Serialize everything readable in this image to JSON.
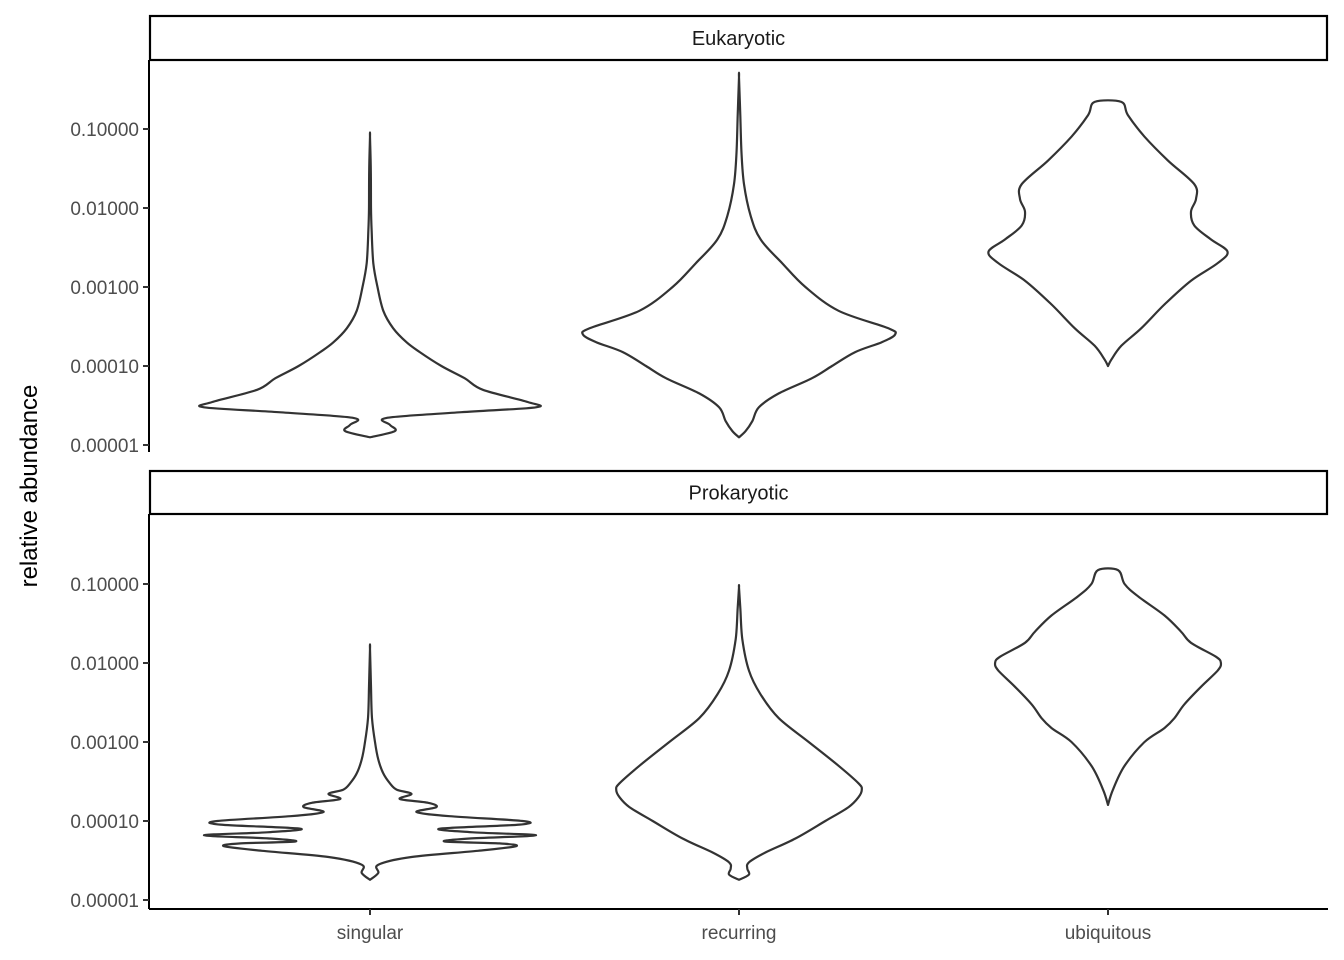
{
  "chart_data": {
    "type": "violin",
    "ylabel": "relative abundance",
    "xlabel": "",
    "y_scale": "log10",
    "ylim": [
      1e-05,
      0.5
    ],
    "grid": false,
    "categories": [
      "singular",
      "recurring",
      "ubiquitous"
    ],
    "y_ticks": [
      1e-05,
      0.0001,
      0.001,
      0.01,
      0.1
    ],
    "y_tick_labels": [
      "0.00001",
      "0.00010",
      "0.00100",
      "0.01000",
      "0.10000"
    ],
    "facets": [
      {
        "name": "Eukaryotic",
        "violins": [
          {
            "category": "singular",
            "y_min": 1.25e-05,
            "y_max": 0.08,
            "profile": [
              [
                1.25e-05,
                0.0
              ],
              [
                1.5e-05,
                0.15
              ],
              [
                1.8e-05,
                0.12
              ],
              [
                2.2e-05,
                0.1
              ],
              [
                2.6e-05,
                0.55
              ],
              [
                3e-05,
                1.0
              ],
              [
                3.5e-05,
                0.95
              ],
              [
                5e-05,
                0.68
              ],
              [
                7e-05,
                0.57
              ],
              [
                0.0001,
                0.43
              ],
              [
                0.00015,
                0.3
              ],
              [
                0.0002,
                0.22
              ],
              [
                0.0003,
                0.14
              ],
              [
                0.0005,
                0.08
              ],
              [
                0.001,
                0.045
              ],
              [
                0.002,
                0.02
              ],
              [
                0.005,
                0.01
              ],
              [
                0.01,
                0.006
              ],
              [
                0.03,
                0.005
              ],
              [
                0.08,
                0.0
              ]
            ]
          },
          {
            "category": "recurring",
            "y_min": 1.25e-05,
            "y_max": 0.45,
            "profile": [
              [
                1.25e-05,
                0.0
              ],
              [
                1.5e-05,
                0.04
              ],
              [
                2e-05,
                0.08
              ],
              [
                3e-05,
                0.12
              ],
              [
                4.5e-05,
                0.24
              ],
              [
                7e-05,
                0.44
              ],
              [
                0.0001,
                0.56
              ],
              [
                0.00015,
                0.7
              ],
              [
                0.0002,
                0.86
              ],
              [
                0.00025,
                0.94
              ],
              [
                0.0003,
                0.9
              ],
              [
                0.0005,
                0.6
              ],
              [
                0.001,
                0.4
              ],
              [
                0.002,
                0.26
              ],
              [
                0.004,
                0.13
              ],
              [
                0.008,
                0.07
              ],
              [
                0.02,
                0.03
              ],
              [
                0.05,
                0.015
              ],
              [
                0.15,
                0.008
              ],
              [
                0.45,
                0.0
              ]
            ]
          },
          {
            "category": "ubiquitous",
            "y_min": 0.0001,
            "y_max": 0.22,
            "profile": [
              [
                0.0001,
                0.0
              ],
              [
                0.00012,
                0.02
              ],
              [
                0.00018,
                0.08
              ],
              [
                0.0003,
                0.2
              ],
              [
                0.0006,
                0.34
              ],
              [
                0.0012,
                0.5
              ],
              [
                0.002,
                0.66
              ],
              [
                0.0028,
                0.72
              ],
              [
                0.004,
                0.62
              ],
              [
                0.006,
                0.52
              ],
              [
                0.009,
                0.5
              ],
              [
                0.013,
                0.53
              ],
              [
                0.02,
                0.52
              ],
              [
                0.04,
                0.36
              ],
              [
                0.08,
                0.22
              ],
              [
                0.15,
                0.12
              ],
              [
                0.22,
                0.08
              ]
            ]
          }
        ]
      },
      {
        "name": "Prokaryotic",
        "violins": [
          {
            "category": "singular",
            "y_min": 1.8e-05,
            "y_max": 0.015,
            "profile": [
              [
                1.8e-05,
                0.0
              ],
              [
                2.2e-05,
                0.05
              ],
              [
                2.8e-05,
                0.05
              ],
              [
                3.5e-05,
                0.25
              ],
              [
                4.2e-05,
                0.65
              ],
              [
                4.8e-05,
                0.88
              ],
              [
                5.2e-05,
                0.78
              ],
              [
                5.5e-05,
                0.45
              ],
              [
                6e-05,
                0.6
              ],
              [
                6.6e-05,
                1.0
              ],
              [
                7.2e-05,
                0.62
              ],
              [
                8e-05,
                0.42
              ],
              [
                9e-05,
                0.9
              ],
              [
                0.0001,
                0.92
              ],
              [
                0.000115,
                0.48
              ],
              [
                0.00013,
                0.28
              ],
              [
                0.00015,
                0.4
              ],
              [
                0.00017,
                0.35
              ],
              [
                0.00019,
                0.18
              ],
              [
                0.00022,
                0.25
              ],
              [
                0.00025,
                0.16
              ],
              [
                0.0003,
                0.12
              ],
              [
                0.0004,
                0.08
              ],
              [
                0.0006,
                0.05
              ],
              [
                0.001,
                0.03
              ],
              [
                0.002,
                0.012
              ],
              [
                0.005,
                0.006
              ],
              [
                0.015,
                0.0
              ]
            ]
          },
          {
            "category": "recurring",
            "y_min": 1.8e-05,
            "y_max": 0.09,
            "profile": [
              [
                1.8e-05,
                0.0
              ],
              [
                2.1e-05,
                0.06
              ],
              [
                2.5e-05,
                0.05
              ],
              [
                3e-05,
                0.06
              ],
              [
                4e-05,
                0.16
              ],
              [
                6e-05,
                0.34
              ],
              [
                0.0001,
                0.52
              ],
              [
                0.00015,
                0.66
              ],
              [
                0.0002,
                0.72
              ],
              [
                0.00025,
                0.74
              ],
              [
                0.0003,
                0.72
              ],
              [
                0.0005,
                0.6
              ],
              [
                0.001,
                0.42
              ],
              [
                0.002,
                0.24
              ],
              [
                0.004,
                0.13
              ],
              [
                0.008,
                0.06
              ],
              [
                0.02,
                0.02
              ],
              [
                0.05,
                0.008
              ],
              [
                0.09,
                0.0
              ]
            ]
          },
          {
            "category": "ubiquitous",
            "y_min": 0.00016,
            "y_max": 0.15,
            "profile": [
              [
                0.00016,
                0.0
              ],
              [
                0.00025,
                0.03
              ],
              [
                0.0005,
                0.1
              ],
              [
                0.001,
                0.22
              ],
              [
                0.0015,
                0.34
              ],
              [
                0.002,
                0.4
              ],
              [
                0.003,
                0.46
              ],
              [
                0.005,
                0.56
              ],
              [
                0.008,
                0.66
              ],
              [
                0.01,
                0.68
              ],
              [
                0.012,
                0.65
              ],
              [
                0.018,
                0.5
              ],
              [
                0.025,
                0.44
              ],
              [
                0.04,
                0.34
              ],
              [
                0.07,
                0.18
              ],
              [
                0.1,
                0.1
              ],
              [
                0.15,
                0.06
              ]
            ]
          }
        ]
      }
    ]
  }
}
